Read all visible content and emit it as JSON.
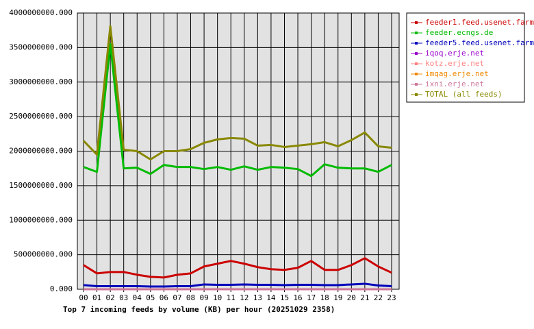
{
  "chart_data": {
    "type": "line",
    "title": "Top 7 incoming feeds by volume (KB) per hour (20251029 2358)",
    "categories": [
      "00",
      "01",
      "02",
      "03",
      "04",
      "05",
      "06",
      "07",
      "08",
      "09",
      "10",
      "11",
      "12",
      "13",
      "14",
      "15",
      "16",
      "17",
      "18",
      "19",
      "20",
      "21",
      "22",
      "23"
    ],
    "ylim": [
      0,
      4000000000
    ],
    "yticks": [
      {
        "value": 0,
        "label": "0.000"
      },
      {
        "value": 500000000,
        "label": "500000000.000"
      },
      {
        "value": 1000000000,
        "label": "1000000000.000"
      },
      {
        "value": 1500000000,
        "label": "1500000000.000"
      },
      {
        "value": 2000000000,
        "label": "2000000000.000"
      },
      {
        "value": 2500000000,
        "label": "2500000000.000"
      },
      {
        "value": 3000000000,
        "label": "3000000000.000"
      },
      {
        "value": 3500000000,
        "label": "3500000000.000"
      },
      {
        "value": 4000000000,
        "label": "4000000000.000"
      }
    ],
    "grid": true,
    "legend": "right",
    "series": [
      {
        "name": "feeder1.feed.usenet.farm",
        "color": "#cc0000",
        "values": [
          350000000,
          230000000,
          250000000,
          250000000,
          210000000,
          180000000,
          170000000,
          210000000,
          230000000,
          330000000,
          370000000,
          410000000,
          370000000,
          320000000,
          290000000,
          280000000,
          310000000,
          410000000,
          280000000,
          280000000,
          350000000,
          450000000,
          330000000,
          240000000
        ]
      },
      {
        "name": "feeder.ecngs.de",
        "color": "#00bb00",
        "values": [
          1770000000,
          1700000000,
          3550000000,
          1750000000,
          1760000000,
          1670000000,
          1800000000,
          1770000000,
          1770000000,
          1740000000,
          1770000000,
          1730000000,
          1780000000,
          1730000000,
          1770000000,
          1760000000,
          1740000000,
          1640000000,
          1810000000,
          1760000000,
          1750000000,
          1750000000,
          1700000000,
          1800000000
        ]
      },
      {
        "name": "feeder5.feed.usenet.farm",
        "color": "#0000bb",
        "values": [
          60000000,
          45000000,
          45000000,
          45000000,
          45000000,
          40000000,
          40000000,
          45000000,
          45000000,
          70000000,
          65000000,
          65000000,
          70000000,
          65000000,
          65000000,
          60000000,
          65000000,
          65000000,
          60000000,
          60000000,
          70000000,
          80000000,
          55000000,
          45000000
        ]
      },
      {
        "name": "iqoq.erje.net",
        "color": "#9900cc",
        "values": [
          0,
          0,
          0,
          0,
          0,
          0,
          0,
          0,
          0,
          0,
          0,
          0,
          0,
          0,
          0,
          0,
          0,
          0,
          0,
          0,
          0,
          0,
          0,
          0
        ]
      },
      {
        "name": "kotz.erje.net",
        "color": "#ff8080",
        "values": [
          0,
          0,
          0,
          0,
          0,
          0,
          0,
          0,
          0,
          0,
          0,
          0,
          0,
          0,
          0,
          0,
          0,
          0,
          0,
          0,
          0,
          0,
          0,
          0
        ]
      },
      {
        "name": "imqag.erje.net",
        "color": "#ee8800",
        "values": [
          0,
          0,
          0,
          0,
          0,
          0,
          0,
          0,
          0,
          0,
          0,
          0,
          0,
          0,
          0,
          0,
          0,
          0,
          0,
          0,
          0,
          0,
          0,
          0
        ]
      },
      {
        "name": "ixni.erje.net",
        "color": "#cc7799",
        "values": [
          0,
          0,
          0,
          0,
          0,
          0,
          0,
          0,
          0,
          0,
          0,
          0,
          0,
          0,
          0,
          0,
          0,
          0,
          0,
          0,
          0,
          0,
          0,
          0
        ]
      },
      {
        "name": "TOTAL (all feeds)",
        "color": "#888800",
        "values": [
          2150000000,
          1950000000,
          3810000000,
          2020000000,
          2000000000,
          1880000000,
          2000000000,
          2000000000,
          2030000000,
          2120000000,
          2170000000,
          2190000000,
          2180000000,
          2080000000,
          2090000000,
          2060000000,
          2080000000,
          2100000000,
          2130000000,
          2070000000,
          2160000000,
          2270000000,
          2070000000,
          2050000000
        ]
      }
    ]
  }
}
